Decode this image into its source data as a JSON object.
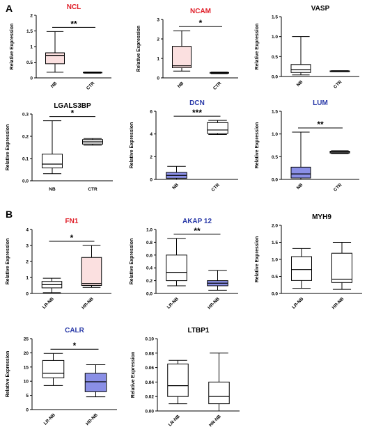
{
  "panel_letters": [
    "A",
    "B"
  ],
  "colors": {
    "red_title": "#e0202a",
    "blue_title": "#2a3aa8",
    "pink_fill": "#fbe0e0",
    "blue_fill": "#8a8fe6",
    "white_fill": "#ffffff"
  },
  "chart_data": [
    {
      "type": "box",
      "title": "NCL",
      "title_color": "red",
      "ylabel": "Relative Expression",
      "ylim": [
        0,
        2
      ],
      "yticks": [
        0,
        0.5,
        1,
        1.5,
        2
      ],
      "ytick_labels": [
        "0",
        "0.5",
        "1",
        "1.5",
        "2"
      ],
      "categories": [
        "NB",
        "CTR"
      ],
      "rotated_xticks": true,
      "significance": "**",
      "boxes": [
        {
          "min": 0.18,
          "q1": 0.45,
          "median": 0.72,
          "q3": 0.8,
          "max": 1.48,
          "fill": "pink"
        },
        {
          "min": 0.15,
          "q1": 0.16,
          "median": 0.17,
          "q3": 0.18,
          "max": 0.19,
          "fill": "white"
        }
      ]
    },
    {
      "type": "box",
      "title": "NCAM",
      "title_color": "red",
      "ylabel": "Relative Expression",
      "ylim": [
        0,
        3
      ],
      "yticks": [
        0,
        1,
        2,
        3
      ],
      "ytick_labels": [
        "0",
        "1",
        "2",
        "3"
      ],
      "categories": [
        "NB",
        "CTR"
      ],
      "rotated_xticks": true,
      "significance": "*",
      "boxes": [
        {
          "min": 0.35,
          "q1": 0.52,
          "median": 0.62,
          "q3": 1.62,
          "max": 2.42,
          "fill": "pink"
        },
        {
          "min": 0.22,
          "q1": 0.24,
          "median": 0.26,
          "q3": 0.28,
          "max": 0.3,
          "fill": "white"
        }
      ]
    },
    {
      "type": "box",
      "title": "VASP",
      "title_color": "black",
      "ylabel": "Relative Expression",
      "ylim": [
        0,
        1.5
      ],
      "yticks": [
        0,
        0.5,
        1,
        1.5
      ],
      "ytick_labels": [
        "0.0",
        "0.5",
        "1.0",
        "1.5"
      ],
      "categories": [
        "NB",
        "CTR"
      ],
      "rotated_xticks": true,
      "significance": "",
      "boxes": [
        {
          "min": 0.04,
          "q1": 0.1,
          "median": 0.17,
          "q3": 0.3,
          "max": 1.0,
          "fill": "white"
        },
        {
          "min": 0.12,
          "q1": 0.125,
          "median": 0.13,
          "q3": 0.14,
          "max": 0.145,
          "fill": "white"
        }
      ]
    },
    {
      "type": "box",
      "title": "LGALS3BP",
      "title_color": "black",
      "ylabel": "Relative Expression",
      "ylim": [
        0,
        0.3
      ],
      "yticks": [
        0,
        0.1,
        0.2,
        0.3
      ],
      "ytick_labels": [
        "0.0",
        "0.1",
        "0.2",
        "0.3"
      ],
      "categories": [
        "NB",
        "CTR"
      ],
      "rotated_xticks": false,
      "significance": "*",
      "boxes": [
        {
          "min": 0.032,
          "q1": 0.058,
          "median": 0.075,
          "q3": 0.12,
          "max": 0.27,
          "fill": "white"
        },
        {
          "min": 0.16,
          "q1": 0.165,
          "median": 0.175,
          "q3": 0.185,
          "max": 0.19,
          "fill": "white"
        }
      ]
    },
    {
      "type": "box",
      "title": "DCN",
      "title_color": "blue",
      "ylabel": "Relative Expression",
      "ylim": [
        0,
        6
      ],
      "yticks": [
        0,
        2,
        4,
        6
      ],
      "ytick_labels": [
        "0",
        "2",
        "4",
        "6"
      ],
      "categories": [
        "NB",
        "CTR"
      ],
      "rotated_xticks": true,
      "significance": "***",
      "boxes": [
        {
          "min": 0.0,
          "q1": 0.1,
          "median": 0.35,
          "q3": 0.62,
          "max": 1.15,
          "fill": "blue"
        },
        {
          "min": 3.95,
          "q1": 4.05,
          "median": 4.35,
          "q3": 5.0,
          "max": 5.2,
          "fill": "white"
        }
      ]
    },
    {
      "type": "box",
      "title": "LUM",
      "title_color": "blue",
      "ylabel": "Relative Expression",
      "ylim": [
        0,
        1.5
      ],
      "yticks": [
        0,
        0.5,
        1,
        1.5
      ],
      "ytick_labels": [
        "0.0",
        "0.5",
        "1.0",
        "1.5"
      ],
      "categories": [
        "NB",
        "CTR"
      ],
      "rotated_xticks": true,
      "significance": "**",
      "boxes": [
        {
          "min": 0.0,
          "q1": 0.03,
          "median": 0.12,
          "q3": 0.27,
          "max": 1.04,
          "fill": "blue"
        },
        {
          "min": 0.57,
          "q1": 0.58,
          "median": 0.6,
          "q3": 0.62,
          "max": 0.63,
          "fill": "white"
        }
      ]
    },
    {
      "type": "box",
      "title": "FN1",
      "title_color": "red",
      "ylabel": "Relative Expression",
      "ylim": [
        0,
        4
      ],
      "yticks": [
        0,
        1,
        2,
        3,
        4
      ],
      "ytick_labels": [
        "0",
        "1",
        "2",
        "3",
        "4"
      ],
      "categories": [
        "LR-NB",
        "HR-NB"
      ],
      "rotated_xticks": true,
      "significance": "*",
      "boxes": [
        {
          "min": 0.05,
          "q1": 0.35,
          "median": 0.55,
          "q3": 0.75,
          "max": 0.95,
          "fill": "white"
        },
        {
          "min": 0.38,
          "q1": 0.5,
          "median": 0.62,
          "q3": 2.25,
          "max": 3.0,
          "fill": "pink"
        }
      ]
    },
    {
      "type": "box",
      "title": "AKAP 12",
      "title_color": "blue",
      "ylabel": "Relative Expression",
      "ylim": [
        0,
        1.0
      ],
      "yticks": [
        0,
        0.2,
        0.4,
        0.6,
        0.8,
        1.0
      ],
      "ytick_labels": [
        "0.0",
        "0.2",
        "0.4",
        "0.6",
        "0.8",
        "1.0"
      ],
      "categories": [
        "LR-NB",
        "HR-NB"
      ],
      "rotated_xticks": true,
      "significance": "**",
      "boxes": [
        {
          "min": 0.12,
          "q1": 0.2,
          "median": 0.33,
          "q3": 0.6,
          "max": 0.86,
          "fill": "white"
        },
        {
          "min": 0.05,
          "q1": 0.12,
          "median": 0.16,
          "q3": 0.2,
          "max": 0.36,
          "fill": "blue"
        }
      ]
    },
    {
      "type": "box",
      "title": "MYH9",
      "title_color": "black",
      "ylabel": "Relative Expression",
      "ylim": [
        0,
        2.0
      ],
      "yticks": [
        0,
        0.5,
        1,
        1.5,
        2
      ],
      "ytick_labels": [
        "0.0",
        "0.5",
        "1.0",
        "1.5",
        "2.0"
      ],
      "categories": [
        "LR-NB",
        "HR-NB"
      ],
      "rotated_xticks": true,
      "significance": "",
      "boxes": [
        {
          "min": 0.15,
          "q1": 0.38,
          "median": 0.7,
          "q3": 1.08,
          "max": 1.32,
          "fill": "white"
        },
        {
          "min": 0.12,
          "q1": 0.32,
          "median": 0.42,
          "q3": 1.18,
          "max": 1.5,
          "fill": "white"
        }
      ]
    },
    {
      "type": "box",
      "title": "CALR",
      "title_color": "blue",
      "ylabel": "Relative Expression",
      "ylim": [
        0,
        25
      ],
      "yticks": [
        0,
        5,
        10,
        15,
        20,
        25
      ],
      "ytick_labels": [
        "0",
        "5",
        "10",
        "15",
        "20",
        "25"
      ],
      "categories": [
        "LR-NB",
        "HR-NB"
      ],
      "rotated_xticks": true,
      "significance": "*",
      "boxes": [
        {
          "min": 8.5,
          "q1": 11.2,
          "median": 12.8,
          "q3": 17.3,
          "max": 19.8,
          "fill": "white"
        },
        {
          "min": 4.5,
          "q1": 6.3,
          "median": 9.8,
          "q3": 12.8,
          "max": 15.8,
          "fill": "blue"
        }
      ]
    },
    {
      "type": "box",
      "title": "LTBP1",
      "title_color": "black",
      "ylabel": "Relative Expression",
      "ylim": [
        0,
        0.1
      ],
      "yticks": [
        0,
        0.02,
        0.04,
        0.06,
        0.08,
        0.1
      ],
      "ytick_labels": [
        "0.00",
        "0.02",
        "0.04",
        "0.06",
        "0.08",
        "0.10"
      ],
      "categories": [
        "LR-NB",
        "HR-NB"
      ],
      "rotated_xticks": true,
      "significance": "",
      "boxes": [
        {
          "min": 0.01,
          "q1": 0.02,
          "median": 0.035,
          "q3": 0.065,
          "max": 0.07,
          "fill": "white"
        },
        {
          "min": 0.0,
          "q1": 0.01,
          "median": 0.02,
          "q3": 0.04,
          "max": 0.08,
          "fill": "white"
        }
      ]
    }
  ]
}
